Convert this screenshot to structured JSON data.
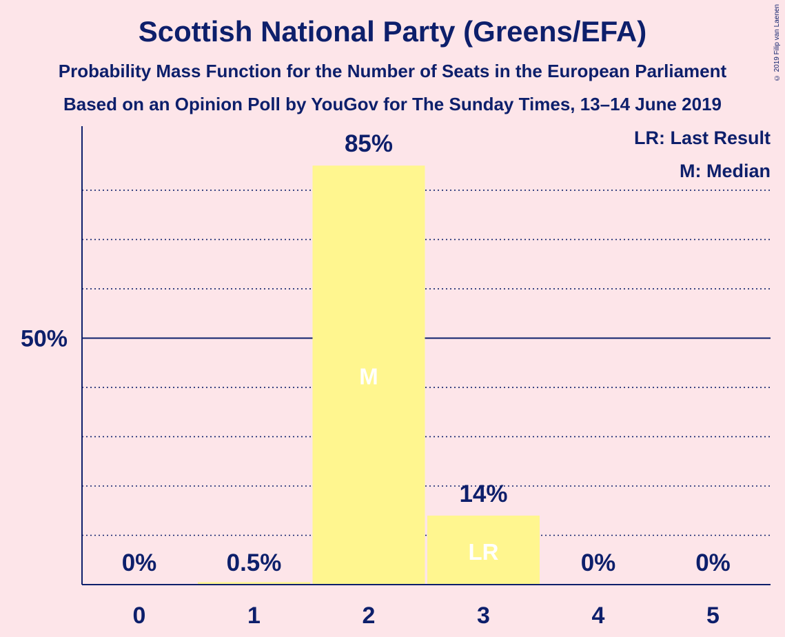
{
  "title": "Scottish National Party (Greens/EFA)",
  "subtitle_1": "Probability Mass Function for the Number of Seats in the European Parliament",
  "subtitle_2": "Based on an Opinion Poll by YouGov for The Sunday Times, 13–14 June 2019",
  "copyright": "© 2019 Filip van Laenen",
  "legend": {
    "last_result": "LR: Last Result",
    "median": "M: Median"
  },
  "colors": {
    "background": "#fde5e9",
    "bar": "#fff68f",
    "axis": "#0d1f6b"
  },
  "chart_data": {
    "type": "bar",
    "categories": [
      "0",
      "1",
      "2",
      "3",
      "4",
      "5"
    ],
    "values": [
      0,
      0.5,
      85,
      14,
      0,
      0
    ],
    "value_labels": [
      "0%",
      "0.5%",
      "85%",
      "14%",
      "0%",
      "0%"
    ],
    "bar_markers": [
      "",
      "",
      "M",
      "LR",
      "",
      ""
    ],
    "ylim": [
      0,
      93
    ],
    "y_tick_label": "50%",
    "y_tick_value": 50,
    "dotted_gridlines": [
      10,
      20,
      30,
      40,
      60,
      70,
      80
    ],
    "legend_placement": "top-right"
  }
}
